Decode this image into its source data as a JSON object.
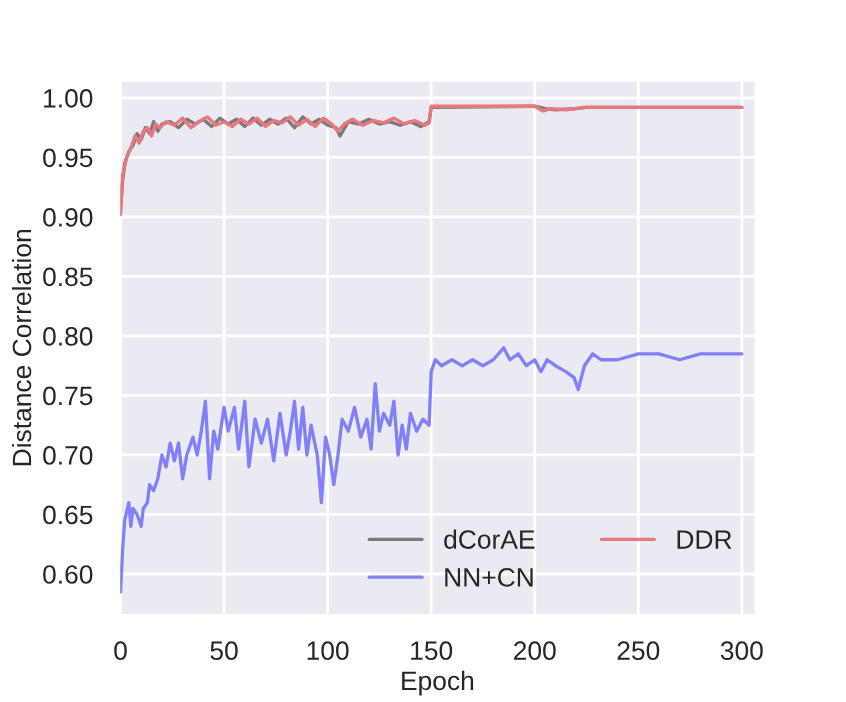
{
  "chart_data": {
    "type": "line",
    "xlabel": "Epoch",
    "ylabel": "Distance Correlation",
    "xlim": [
      -1,
      307
    ],
    "ylim": [
      0.565,
      1.015
    ],
    "xticks": [
      0,
      50,
      100,
      150,
      200,
      250,
      300
    ],
    "yticks": [
      {
        "value": 0.6,
        "label": "0.60"
      },
      {
        "value": 0.65,
        "label": "0.65"
      },
      {
        "value": 0.7,
        "label": "0.70"
      },
      {
        "value": 0.75,
        "label": "0.75"
      },
      {
        "value": 0.8,
        "label": "0.80"
      },
      {
        "value": 0.85,
        "label": "0.85"
      },
      {
        "value": 0.9,
        "label": "0.90"
      },
      {
        "value": 0.95,
        "label": "0.95"
      },
      {
        "value": 1.0,
        "label": "1.00"
      }
    ],
    "grid": true,
    "legend": "bottom right",
    "marker": "none",
    "line_style": "solid",
    "series": [
      {
        "name": "dCorAE",
        "color": "#7a7a7a",
        "x": [
          0,
          1,
          2,
          4,
          6,
          8,
          10,
          12,
          14,
          16,
          18,
          20,
          24,
          28,
          32,
          36,
          40,
          44,
          48,
          52,
          56,
          60,
          64,
          68,
          72,
          76,
          80,
          84,
          88,
          92,
          96,
          100,
          104,
          106,
          110,
          115,
          120,
          125,
          130,
          135,
          140,
          145,
          149,
          150,
          200,
          205,
          210,
          220,
          225,
          300
        ],
        "values": [
          0.905,
          0.93,
          0.945,
          0.955,
          0.96,
          0.97,
          0.965,
          0.975,
          0.97,
          0.98,
          0.972,
          0.978,
          0.98,
          0.975,
          0.982,
          0.978,
          0.982,
          0.976,
          0.983,
          0.978,
          0.982,
          0.976,
          0.983,
          0.977,
          0.982,
          0.978,
          0.983,
          0.975,
          0.984,
          0.978,
          0.982,
          0.977,
          0.975,
          0.968,
          0.98,
          0.978,
          0.982,
          0.978,
          0.98,
          0.977,
          0.98,
          0.976,
          0.98,
          0.992,
          0.993,
          0.991,
          0.99,
          0.991,
          0.992,
          0.992
        ]
      },
      {
        "name": "DDR",
        "color": "#e8787c",
        "x": [
          0,
          1,
          3,
          5,
          7,
          9,
          11,
          13,
          15,
          17,
          19,
          22,
          26,
          30,
          34,
          38,
          42,
          46,
          50,
          54,
          58,
          62,
          66,
          70,
          74,
          78,
          82,
          86,
          90,
          94,
          98,
          102,
          105,
          108,
          112,
          117,
          122,
          127,
          132,
          137,
          142,
          147,
          149,
          150,
          200,
          204,
          208,
          215,
          224,
          300
        ],
        "values": [
          0.902,
          0.935,
          0.95,
          0.958,
          0.968,
          0.962,
          0.972,
          0.975,
          0.968,
          0.978,
          0.975,
          0.98,
          0.977,
          0.983,
          0.975,
          0.98,
          0.984,
          0.977,
          0.98,
          0.976,
          0.982,
          0.978,
          0.983,
          0.976,
          0.981,
          0.979,
          0.984,
          0.977,
          0.982,
          0.976,
          0.983,
          0.978,
          0.972,
          0.978,
          0.982,
          0.977,
          0.981,
          0.979,
          0.983,
          0.978,
          0.981,
          0.977,
          0.979,
          0.993,
          0.993,
          0.989,
          0.991,
          0.99,
          0.992,
          0.992
        ]
      },
      {
        "name": "NN+CN",
        "color": "#8080f8",
        "x": [
          0,
          1,
          2,
          4,
          5,
          6,
          8,
          10,
          11,
          13,
          14,
          16,
          18,
          20,
          22,
          24,
          26,
          28,
          30,
          32,
          35,
          37,
          39,
          41,
          43,
          45,
          47,
          50,
          52,
          55,
          57,
          60,
          62,
          65,
          68,
          71,
          74,
          77,
          80,
          82,
          84,
          86,
          88,
          90,
          92,
          95,
          97,
          99,
          101,
          103,
          105,
          107,
          110,
          113,
          116,
          119,
          121,
          123,
          125,
          127,
          130,
          132,
          134,
          136,
          138,
          140,
          143,
          146,
          149,
          150,
          152,
          155,
          160,
          165,
          170,
          175,
          180,
          185,
          188,
          192,
          196,
          200,
          203,
          206,
          210,
          215,
          219,
          221,
          224,
          228,
          232,
          240,
          250,
          260,
          270,
          280,
          290,
          300
        ],
        "values": [
          0.585,
          0.62,
          0.645,
          0.66,
          0.64,
          0.655,
          0.65,
          0.64,
          0.655,
          0.66,
          0.675,
          0.67,
          0.68,
          0.7,
          0.69,
          0.71,
          0.695,
          0.71,
          0.68,
          0.7,
          0.715,
          0.7,
          0.72,
          0.745,
          0.68,
          0.72,
          0.705,
          0.74,
          0.72,
          0.74,
          0.705,
          0.745,
          0.69,
          0.73,
          0.71,
          0.73,
          0.695,
          0.735,
          0.7,
          0.72,
          0.745,
          0.705,
          0.74,
          0.7,
          0.725,
          0.7,
          0.66,
          0.715,
          0.7,
          0.675,
          0.7,
          0.73,
          0.72,
          0.74,
          0.715,
          0.73,
          0.705,
          0.76,
          0.72,
          0.735,
          0.725,
          0.745,
          0.7,
          0.725,
          0.705,
          0.735,
          0.72,
          0.73,
          0.725,
          0.77,
          0.78,
          0.775,
          0.78,
          0.775,
          0.78,
          0.775,
          0.78,
          0.79,
          0.78,
          0.785,
          0.775,
          0.78,
          0.77,
          0.78,
          0.775,
          0.77,
          0.765,
          0.755,
          0.775,
          0.785,
          0.78,
          0.78,
          0.785,
          0.785,
          0.78,
          0.785,
          0.785,
          0.785
        ]
      }
    ]
  }
}
